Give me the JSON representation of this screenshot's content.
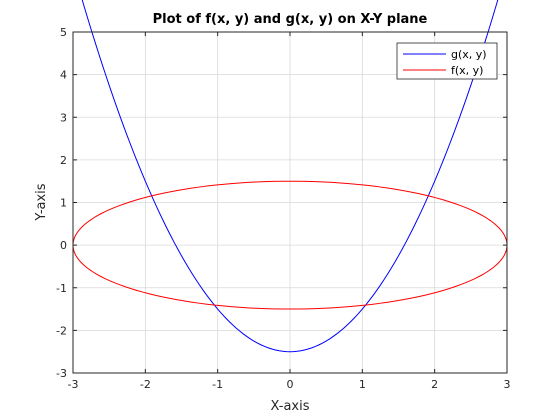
{
  "chart_data": {
    "type": "line",
    "title": "Plot of f(x, y) and g(x, y) on X-Y plane",
    "xlabel": "X-axis",
    "ylabel": "Y-axis",
    "xlim": [
      -3,
      3
    ],
    "ylim": [
      -3,
      5
    ],
    "xticks": [
      -3,
      -2,
      -1,
      0,
      1,
      2,
      3
    ],
    "yticks": [
      -3,
      -2,
      -1,
      0,
      1,
      2,
      3,
      4,
      5
    ],
    "grid": true,
    "legend_position": "top-right",
    "series": [
      {
        "name": "g(x, y)",
        "color": "#0000ff",
        "x": [
          -3,
          -2.5,
          -2,
          -1.5,
          -1,
          -0.5,
          0,
          0.5,
          1,
          1.5,
          2,
          2.5,
          3
        ],
        "y": [
          4.5,
          2.25,
          0.5,
          -0.75,
          -1.5,
          -2.25,
          -2.5,
          -2.25,
          -1.5,
          -0.75,
          0.5,
          2.25,
          4.5
        ]
      },
      {
        "name": "f(x, y)",
        "color": "#ff0000",
        "x": [
          -3,
          -2.85,
          -2.5,
          -2,
          -1.5,
          -1,
          -0.5,
          0,
          0.5,
          1,
          1.5,
          2,
          2.5,
          2.85,
          3,
          2.85,
          2.5,
          2,
          1.5,
          1,
          0.5,
          0,
          -0.5,
          -1,
          -1.5,
          -2,
          -2.5,
          -2.85,
          -3
        ],
        "y": [
          0,
          0.47,
          0.83,
          1.12,
          1.3,
          1.41,
          1.48,
          1.5,
          1.48,
          1.41,
          1.3,
          1.12,
          0.83,
          0.47,
          0,
          -0.47,
          -0.83,
          -1.12,
          -1.3,
          -1.41,
          -1.48,
          -1.5,
          -1.48,
          -1.41,
          -1.3,
          -1.12,
          -0.83,
          -0.47,
          0
        ]
      }
    ]
  }
}
